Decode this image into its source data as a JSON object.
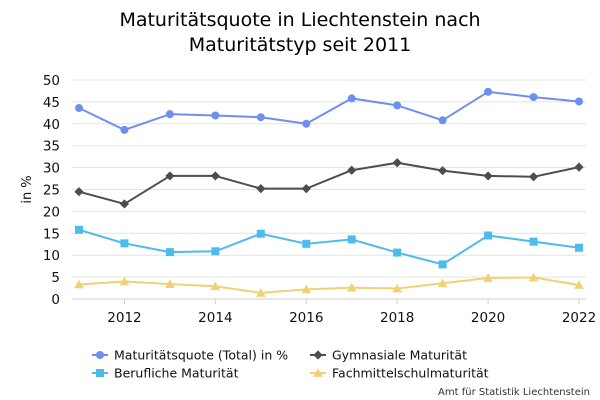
{
  "chart_data": {
    "type": "line",
    "title": "Maturitätsquote in Liechtenstein nach Maturitätstyp seit 2011",
    "title_lines": [
      "Maturitätsquote in Liechtenstein nach",
      "Maturitätstyp seit 2011"
    ],
    "xlabel": "",
    "ylabel": "in %",
    "x": [
      2011,
      2012,
      2013,
      2014,
      2015,
      2016,
      2017,
      2018,
      2019,
      2020,
      2021,
      2022
    ],
    "xticks": [
      2012,
      2014,
      2016,
      2018,
      2020,
      2022
    ],
    "yticks": [
      0,
      5,
      10,
      15,
      20,
      25,
      30,
      35,
      40,
      45,
      50
    ],
    "ylim": [
      0,
      50
    ],
    "grid": "horizontal",
    "legend_position": "bottom",
    "series": [
      {
        "name": "Maturitätsquote (Total) in %",
        "color": "#6f8ff0",
        "marker": "circle",
        "values": [
          43.6,
          38.6,
          42.2,
          41.9,
          41.5,
          40.0,
          45.8,
          44.2,
          40.8,
          47.3,
          46.1,
          45.1
        ]
      },
      {
        "name": "Gymnasiale Maturität",
        "color": "#4d4d4d",
        "marker": "diamond",
        "values": [
          24.5,
          21.7,
          28.1,
          28.1,
          25.2,
          25.2,
          29.4,
          31.1,
          29.3,
          28.1,
          27.9,
          30.1
        ]
      },
      {
        "name": "Berufliche Maturität",
        "color": "#4dbcec",
        "marker": "square",
        "values": [
          15.8,
          12.7,
          10.7,
          10.9,
          14.9,
          12.6,
          13.6,
          10.6,
          7.9,
          14.5,
          13.1,
          11.7
        ]
      },
      {
        "name": "Fachmittelschulmaturität",
        "color": "#f2d074",
        "marker": "triangle",
        "values": [
          3.3,
          4.0,
          3.4,
          2.9,
          1.4,
          2.2,
          2.6,
          2.4,
          3.6,
          4.8,
          4.9,
          3.2
        ]
      }
    ]
  },
  "credit": "Amt für Statistik Liechtenstein"
}
